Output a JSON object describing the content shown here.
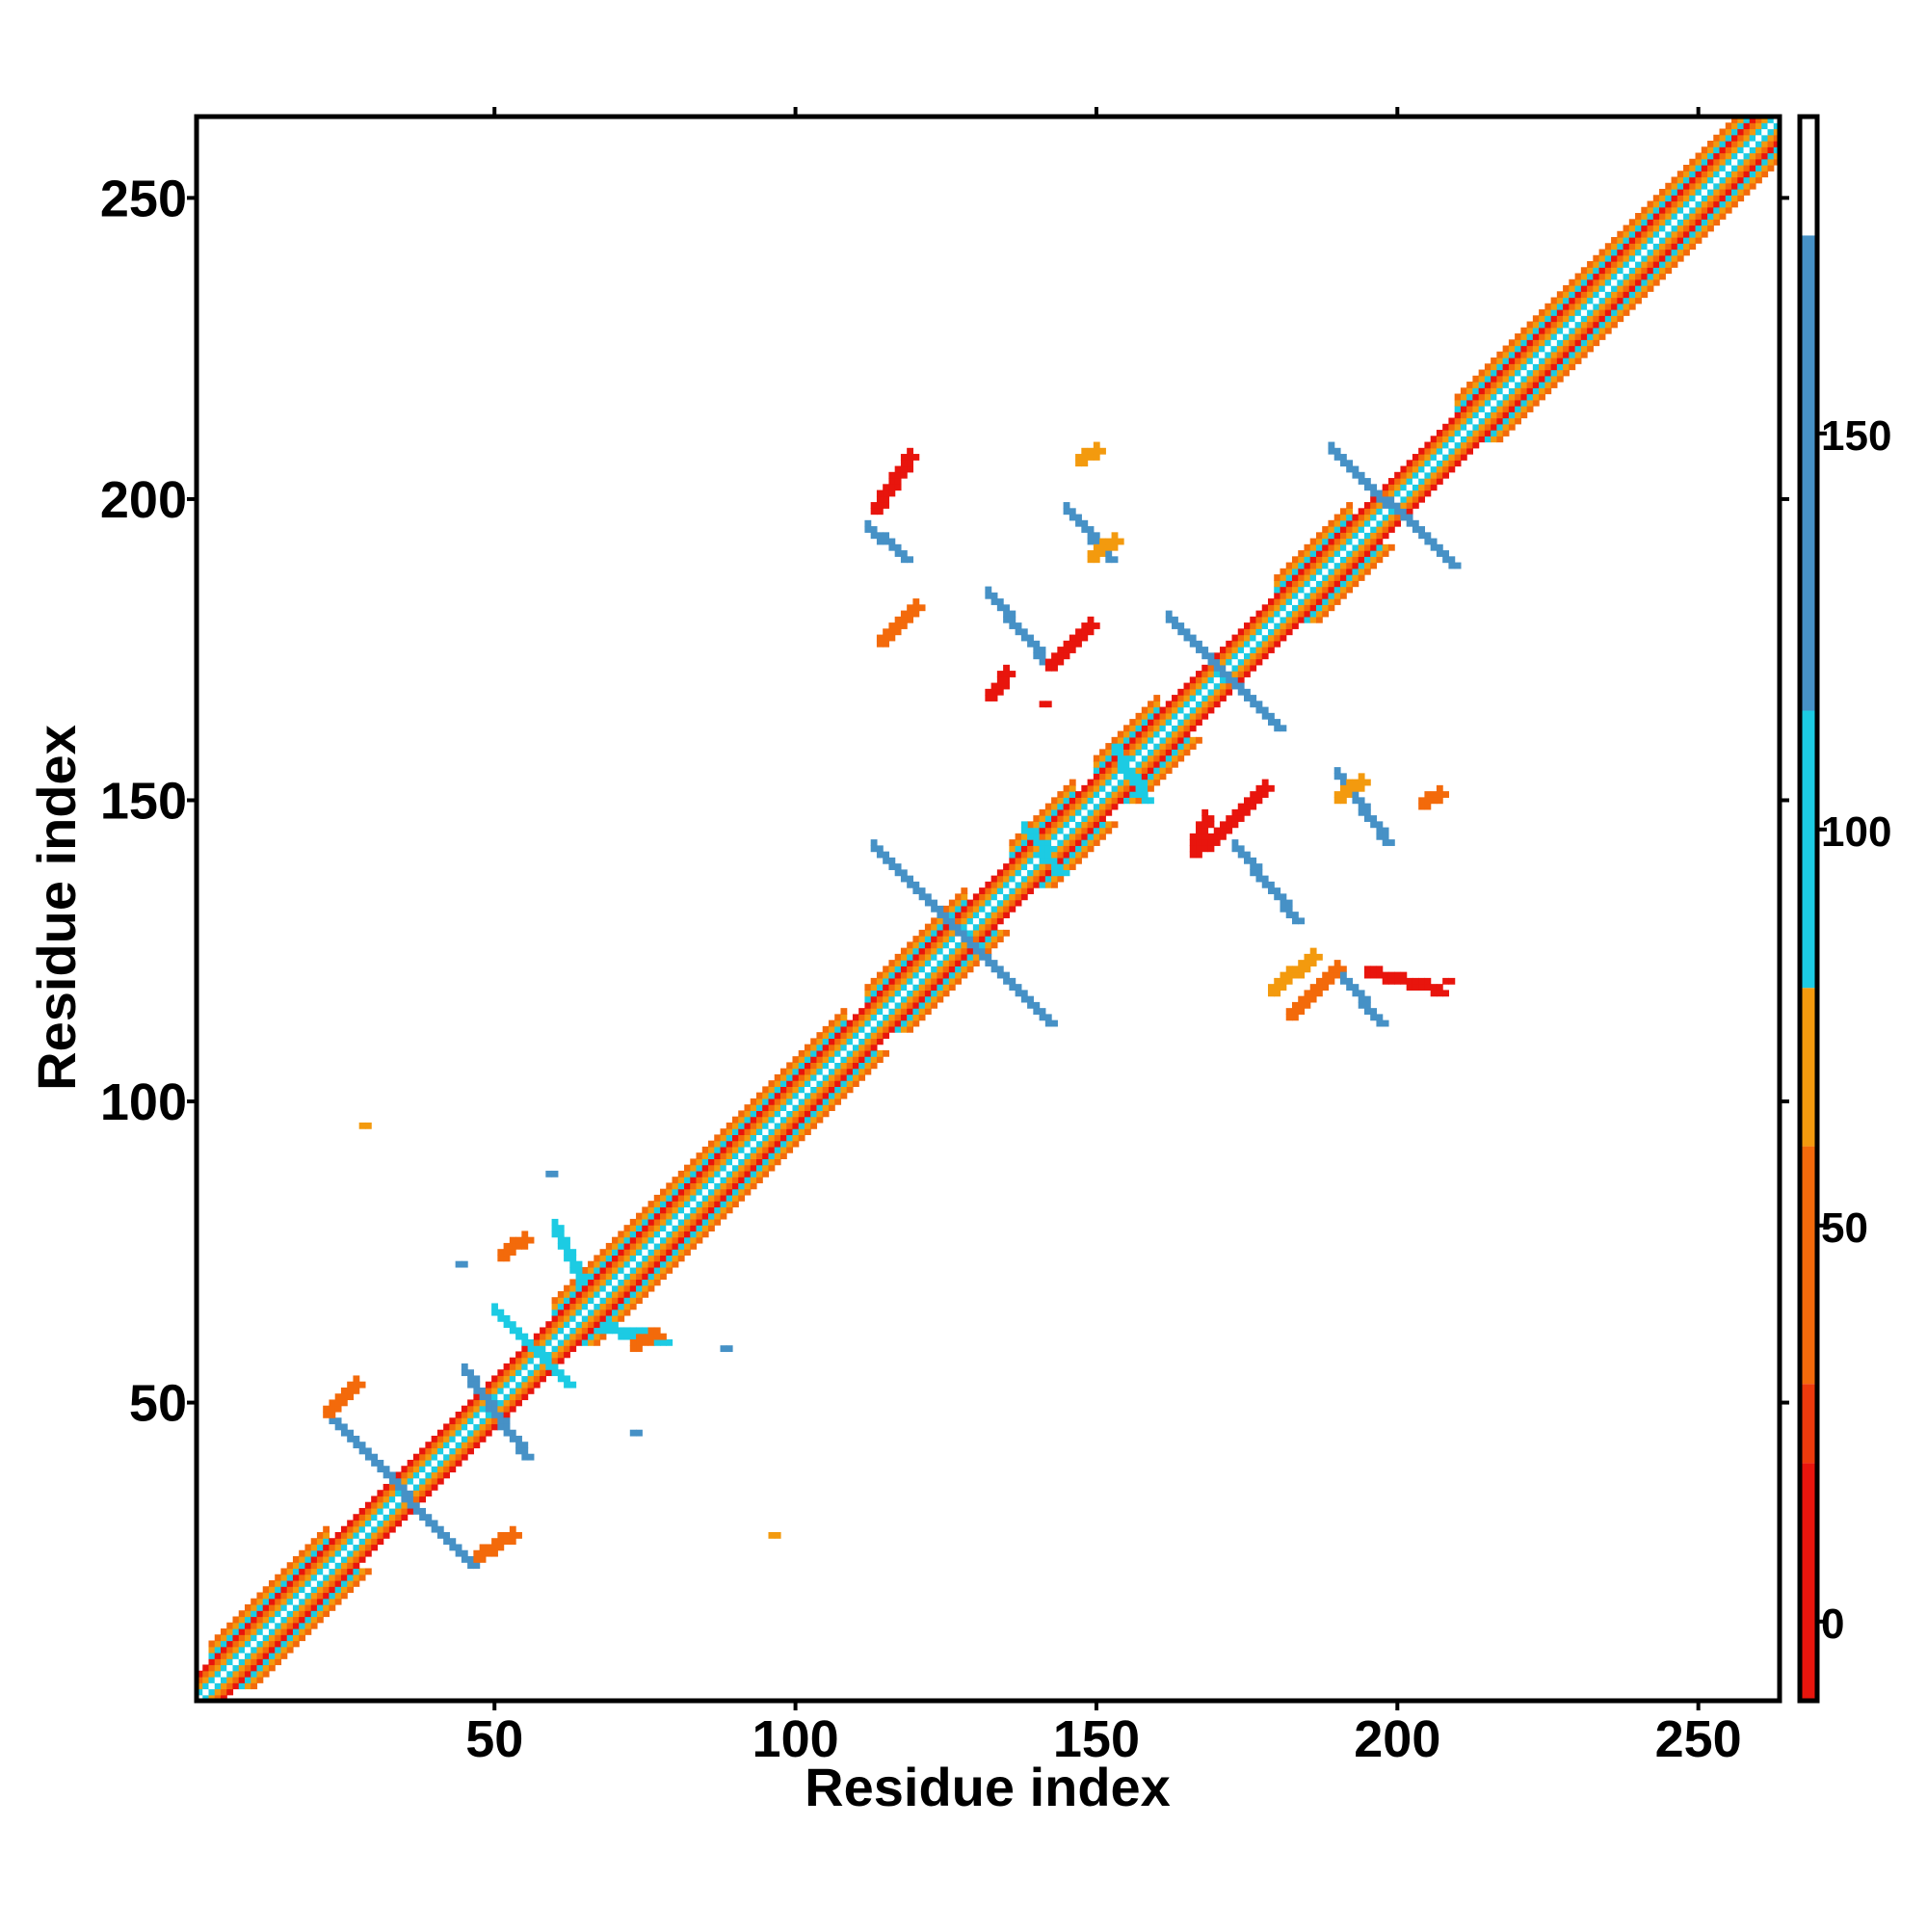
{
  "chart_data": {
    "type": "heatmap",
    "title": "",
    "xlabel": "Residue index",
    "ylabel": "Residue index",
    "xlim": [
      1,
      263
    ],
    "ylim": [
      1,
      263
    ],
    "x_ticks": [
      50,
      100,
      150,
      200,
      250
    ],
    "y_ticks": [
      50,
      100,
      150,
      200,
      250
    ],
    "grid": false,
    "colorbar": {
      "ticks": [
        0,
        50,
        100,
        150
      ],
      "range": [
        -10,
        190
      ],
      "bands": [
        {
          "from": -10,
          "to": 20,
          "color": "#e8150d"
        },
        {
          "from": 20,
          "to": 30,
          "color": "#ee3a0c"
        },
        {
          "from": 30,
          "to": 60,
          "color": "#f36a0b"
        },
        {
          "from": 60,
          "to": 80,
          "color": "#f39a0e"
        },
        {
          "from": 80,
          "to": 115,
          "color": "#1ccbe3"
        },
        {
          "from": 115,
          "to": 175,
          "color": "#4691c6"
        },
        {
          "from": 175,
          "to": 190,
          "color": "#ffffff"
        }
      ]
    },
    "diagonal_bands": [
      {
        "offset": 0,
        "color": "#ffffff"
      },
      {
        "offset": 1,
        "color": "#1ccbe3"
      },
      {
        "offset": 2,
        "color": "#f39a0e"
      },
      {
        "offset": 3,
        "color": "#f36a0b"
      },
      {
        "offset": 4,
        "color": "#e8150d"
      }
    ],
    "helix_regions": [
      [
        3,
        22
      ],
      [
        60,
        108
      ],
      [
        112,
        128
      ],
      [
        136,
        146
      ],
      [
        150,
        160
      ],
      [
        180,
        192
      ],
      [
        210,
        262
      ]
    ],
    "contact_segments": [
      {
        "from": [
          23,
          47
        ],
        "to": [
          46,
          23
        ],
        "color": "#4691c6"
      },
      {
        "from": [
          45,
          55
        ],
        "to": [
          55,
          41
        ],
        "color": "#4691c6"
      },
      {
        "from": [
          50,
          65
        ],
        "to": [
          62,
          53
        ],
        "color": "#1ccbe3"
      },
      {
        "from": [
          113,
          142
        ],
        "to": [
          142,
          113
        ],
        "color": "#4691c6"
      },
      {
        "from": [
          132,
          184
        ],
        "to": [
          142,
          172
        ],
        "color": "#4691c6"
      },
      {
        "from": [
          145,
          198
        ],
        "to": [
          152,
          190
        ],
        "color": "#4691c6"
      },
      {
        "from": [
          162,
          180
        ],
        "to": [
          180,
          162
        ],
        "color": "#4691c6"
      },
      {
        "from": [
          173,
          142
        ],
        "to": [
          183,
          130
        ],
        "color": "#4691c6"
      },
      {
        "from": [
          189,
          208
        ],
        "to": [
          209,
          189
        ],
        "color": "#4691c6"
      },
      {
        "from": [
          190,
          154
        ],
        "to": [
          198,
          143
        ],
        "color": "#4691c6"
      },
      {
        "from": [
          153,
          158
        ],
        "to": [
          158,
          150
        ],
        "color": "#1ccbe3"
      },
      {
        "from": [
          138,
          145
        ],
        "to": [
          144,
          138
        ],
        "color": "#1ccbe3"
      },
      {
        "from": [
          60,
          79
        ],
        "to": [
          64,
          70
        ],
        "color": "#1ccbe3"
      },
      {
        "from": [
          68,
          62
        ],
        "to": [
          78,
          60
        ],
        "color": "#1ccbe3"
      },
      {
        "from": [
          22,
          48
        ],
        "to": [
          27,
          53
        ],
        "color": "#f36a0b"
      },
      {
        "from": [
          47,
          24
        ],
        "to": [
          53,
          28
        ],
        "color": "#f36a0b"
      },
      {
        "from": [
          132,
          167
        ],
        "to": [
          135,
          171
        ],
        "color": "#e8150d"
      },
      {
        "from": [
          142,
          172
        ],
        "to": [
          149,
          179
        ],
        "color": "#e8150d"
      },
      {
        "from": [
          114,
          176
        ],
        "to": [
          120,
          182
        ],
        "color": "#f36a0b"
      },
      {
        "from": [
          168,
          142
        ],
        "to": [
          178,
          152
        ],
        "color": "#e8150d"
      },
      {
        "from": [
          179,
          118
        ],
        "to": [
          186,
          124
        ],
        "color": "#f39a0e"
      },
      {
        "from": [
          182,
          114
        ],
        "to": [
          190,
          122
        ],
        "color": "#f36a0b"
      },
      {
        "from": [
          195,
          121
        ],
        "to": [
          207,
          118
        ],
        "color": "#e8150d"
      },
      {
        "from": [
          191,
          120
        ],
        "to": [
          197,
          113
        ],
        "color": "#4691c6"
      },
      {
        "from": [
          113,
          198
        ],
        "to": [
          119,
          207
        ],
        "color": "#e8150d"
      },
      {
        "from": [
          112,
          195
        ],
        "to": [
          118,
          190
        ],
        "color": "#4691c6"
      },
      {
        "from": [
          147,
          206
        ],
        "to": [
          150,
          208
        ],
        "color": "#f39a0e"
      },
      {
        "from": [
          149,
          190
        ],
        "to": [
          153,
          193
        ],
        "color": "#f39a0e"
      },
      {
        "from": [
          166,
          142
        ],
        "to": [
          168,
          147
        ],
        "color": "#e8150d"
      },
      {
        "from": [
          190,
          150
        ],
        "to": [
          194,
          153
        ],
        "color": "#f39a0e"
      },
      {
        "from": [
          204,
          149
        ],
        "to": [
          207,
          151
        ],
        "color": "#f36a0b"
      },
      {
        "from": [
          51,
          74
        ],
        "to": [
          55,
          77
        ],
        "color": "#f36a0b"
      },
      {
        "from": [
          73,
          59
        ],
        "to": [
          77,
          61
        ],
        "color": "#f36a0b"
      }
    ],
    "isolated_points": [
      {
        "x": 28,
        "y": 96,
        "color": "#f39a0e"
      },
      {
        "x": 96,
        "y": 28,
        "color": "#f39a0e"
      },
      {
        "x": 44,
        "y": 73,
        "color": "#4691c6"
      },
      {
        "x": 73,
        "y": 45,
        "color": "#4691c6"
      },
      {
        "x": 59,
        "y": 88,
        "color": "#4691c6"
      },
      {
        "x": 88,
        "y": 59,
        "color": "#4691c6"
      },
      {
        "x": 141,
        "y": 166,
        "color": "#e8150d"
      },
      {
        "x": 166,
        "y": 141,
        "color": "#e8150d"
      },
      {
        "x": 208,
        "y": 120,
        "color": "#e8150d"
      },
      {
        "x": 203,
        "y": 119,
        "color": "#e8150d"
      }
    ]
  }
}
